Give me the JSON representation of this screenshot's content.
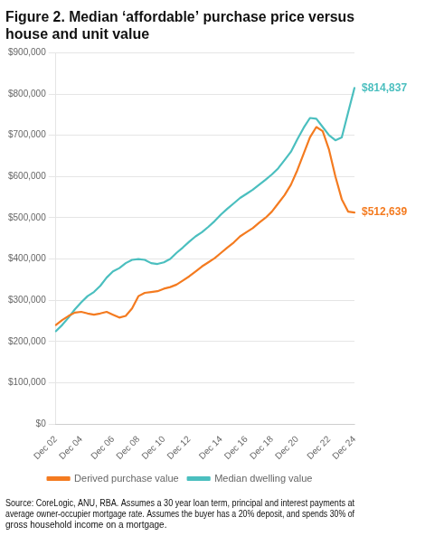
{
  "chart_data": {
    "type": "line",
    "title": "Figure 2. Median ‘affordable’ purchase price versus house and unit value",
    "source": "Source: CoreLogic, ANU, RBA. Assumes a 30 year loan term, principal and interest payments at average owner-occupier mortgage rate. Assumes the buyer has a 20% deposit, and spends 30% of gross household income on a mortgage.",
    "categories": [
      "Dec 02",
      null,
      null,
      null,
      "Dec 04",
      null,
      null,
      null,
      null,
      "Dec 06",
      null,
      null,
      null,
      "Dec 08",
      null,
      null,
      null,
      "Dec 10",
      null,
      null,
      null,
      "Dec 12",
      null,
      null,
      null,
      null,
      "Dec 14",
      null,
      null,
      null,
      "Dec 16",
      null,
      null,
      null,
      "Dec 18",
      null,
      null,
      null,
      "Dec 20",
      null,
      null,
      null,
      null,
      "Dec 22",
      null,
      null,
      null,
      "Dec 24"
    ],
    "series": [
      {
        "name": "Derived purchase value",
        "color": "#F47B20",
        "values": [
          240000,
          252000,
          262000,
          270000,
          272000,
          268000,
          265000,
          268000,
          272000,
          265000,
          258000,
          262000,
          280000,
          310000,
          318000,
          320000,
          322000,
          328000,
          332000,
          338000,
          348000,
          358000,
          370000,
          382000,
          392000,
          402000,
          415000,
          428000,
          440000,
          455000,
          465000,
          475000,
          488000,
          500000,
          515000,
          535000,
          555000,
          580000,
          615000,
          655000,
          695000,
          720000,
          710000,
          665000,
          600000,
          545000,
          515000,
          512639
        ]
      },
      {
        "name": "Median dwelling value",
        "color": "#4BBFBF",
        "values": [
          225000,
          240000,
          258000,
          278000,
          295000,
          310000,
          320000,
          335000,
          355000,
          370000,
          378000,
          390000,
          398000,
          400000,
          398000,
          390000,
          388000,
          392000,
          400000,
          415000,
          428000,
          442000,
          455000,
          465000,
          478000,
          492000,
          508000,
          522000,
          535000,
          548000,
          558000,
          568000,
          580000,
          592000,
          605000,
          620000,
          640000,
          660000,
          690000,
          718000,
          742000,
          740000,
          720000,
          700000,
          688000,
          695000,
          755000,
          814837
        ]
      }
    ],
    "annotations": [
      {
        "text": "$814,837",
        "series": "Median dwelling value"
      },
      {
        "text": "$512,639",
        "series": "Derived purchase value"
      }
    ],
    "ylim": [
      0,
      900000
    ],
    "yticks": [
      {
        "value": 0,
        "label": "$0"
      },
      {
        "value": 100000,
        "label": "$100,000"
      },
      {
        "value": 200000,
        "label": "$200,000"
      },
      {
        "value": 300000,
        "label": "$300,000"
      },
      {
        "value": 400000,
        "label": "$400,000"
      },
      {
        "value": 500000,
        "label": "$500,000"
      },
      {
        "value": 600000,
        "label": "$600,000"
      },
      {
        "value": 700000,
        "label": "$700,000"
      },
      {
        "value": 800000,
        "label": "$800,000"
      },
      {
        "value": 900000,
        "label": "$900,000"
      }
    ],
    "grid": "y",
    "legend": "bottom"
  }
}
